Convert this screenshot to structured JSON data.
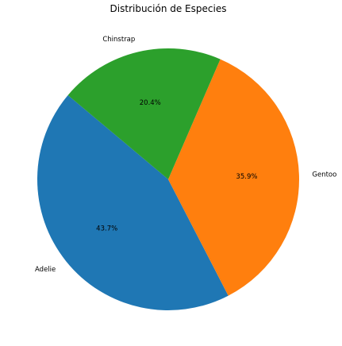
{
  "chart_data": {
    "type": "pie",
    "title": "Distribución de Especies",
    "categories": [
      "Adelie",
      "Gentoo",
      "Chinstrap"
    ],
    "values": [
      43.7,
      35.9,
      20.4
    ],
    "percent_labels": [
      "43.7%",
      "35.9%",
      "20.4%"
    ],
    "colors": [
      "#1f77b4",
      "#ff7f0e",
      "#2ca02c"
    ],
    "start_angle_deg": 140,
    "direction": "counterclockwise",
    "legend": "none"
  }
}
